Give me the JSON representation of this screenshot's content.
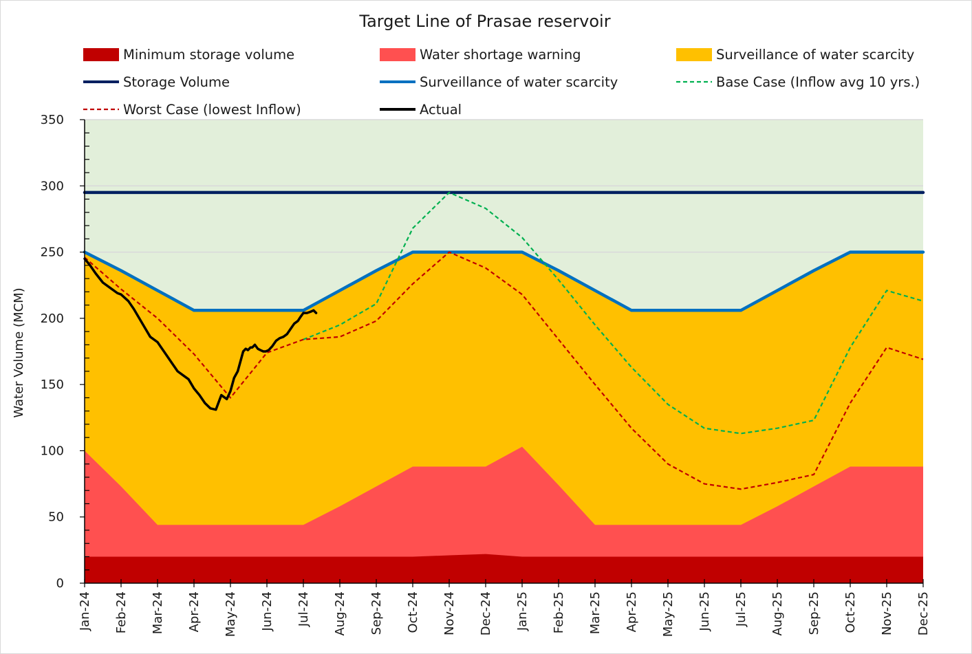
{
  "chart_data": {
    "type": "area",
    "title": "Target Line of Prasae reservoir",
    "xlabel": "",
    "ylabel": "Water Volume (MCM)",
    "ylim": [
      0,
      350
    ],
    "yticks": [
      0,
      50,
      100,
      150,
      200,
      250,
      300,
      350
    ],
    "categories": [
      "Jan-24",
      "Feb-24",
      "Mar-24",
      "Apr-24",
      "May-24",
      "Jun-24",
      "Jul-24",
      "Aug-24",
      "Sep-24",
      "Oct-24",
      "Nov-24",
      "Dec-24",
      "Jan-25",
      "Feb-25",
      "Mar-25",
      "Apr-25",
      "May-25",
      "Jun-25",
      "Jul-25",
      "Aug-25",
      "Sep-25",
      "Oct-25",
      "Nov-25",
      "Dec-25"
    ],
    "background_zone": {
      "color": "#e2efda",
      "from": 0,
      "to": 350
    },
    "grid": "horizontal",
    "legend_position": "top",
    "series": [
      {
        "name": "Surveillance of water scarcity",
        "kind": "area",
        "color": "#ffc000",
        "values": [
          250,
          236,
          221,
          206,
          206,
          206,
          206,
          221,
          236,
          250,
          250,
          250,
          250,
          236,
          221,
          206,
          206,
          206,
          206,
          221,
          236,
          250,
          250,
          250
        ]
      },
      {
        "name": "Water shortage warning",
        "kind": "area",
        "color": "#ff5050",
        "values": [
          100,
          73,
          44,
          44,
          44,
          44,
          44,
          58,
          73,
          88,
          88,
          88,
          103,
          74,
          44,
          44,
          44,
          44,
          44,
          58,
          73,
          88,
          88,
          88
        ]
      },
      {
        "name": "Minimum storage volume",
        "kind": "area",
        "color": "#c00000",
        "values": [
          20,
          20,
          20,
          20,
          20,
          20,
          20,
          20,
          20,
          20,
          21,
          22,
          20,
          20,
          20,
          20,
          20,
          20,
          20,
          20,
          20,
          20,
          20,
          20
        ]
      },
      {
        "name": "Storage Volume",
        "kind": "line",
        "color": "#002060",
        "style": "solid",
        "values": [
          295,
          295,
          295,
          295,
          295,
          295,
          295,
          295,
          295,
          295,
          295,
          295,
          295,
          295,
          295,
          295,
          295,
          295,
          295,
          295,
          295,
          295,
          295,
          295
        ]
      },
      {
        "name": "Surveillance of water scarcity",
        "kind": "line",
        "color": "#0070c0",
        "style": "solid",
        "values": [
          250,
          236,
          221,
          206,
          206,
          206,
          206,
          221,
          236,
          250,
          250,
          250,
          250,
          236,
          221,
          206,
          206,
          206,
          206,
          221,
          236,
          250,
          250,
          250
        ]
      },
      {
        "name": "Base Case (Inflow avg 10 yrs.)",
        "kind": "line",
        "color": "#00b050",
        "style": "dashed",
        "x": [
          6,
          7,
          8,
          9,
          10,
          11,
          12,
          13,
          14,
          15,
          16,
          17,
          18,
          19,
          20,
          21,
          22,
          23
        ],
        "values": [
          184,
          195,
          211,
          268,
          295,
          283,
          261,
          229,
          195,
          163,
          135,
          117,
          113,
          117,
          123,
          178,
          221,
          213
        ]
      },
      {
        "name": "Worst Case (lowest Inflow)",
        "kind": "line",
        "color": "#c00000",
        "style": "dashed",
        "x": [
          0,
          1,
          2,
          3,
          4,
          5,
          6,
          7,
          8,
          9,
          10,
          11,
          12,
          13,
          14,
          15,
          16,
          17,
          18,
          19,
          20,
          21,
          22,
          23
        ],
        "values": [
          246,
          222,
          200,
          173,
          140,
          174,
          184,
          186,
          198,
          226,
          250,
          238,
          218,
          184,
          150,
          117,
          90,
          75,
          71,
          76,
          82,
          136,
          178,
          169
        ]
      },
      {
        "name": "Actual",
        "kind": "line",
        "color": "#000000",
        "style": "solid",
        "x": [
          0,
          0.15,
          0.3,
          0.5,
          0.7,
          0.9,
          1.0,
          1.2,
          1.35,
          1.5,
          1.65,
          1.8,
          2.0,
          2.1,
          2.25,
          2.4,
          2.55,
          2.7,
          2.85,
          3.0,
          3.15,
          3.3,
          3.45,
          3.6,
          3.75,
          3.9,
          4.0,
          4.1,
          4.2,
          4.3,
          4.35,
          4.42,
          4.48,
          4.55,
          4.6,
          4.67,
          4.75,
          4.82,
          4.9,
          4.97,
          5.05,
          5.15,
          5.25,
          5.35,
          5.45,
          5.55,
          5.65,
          5.75,
          5.85,
          5.92,
          6.0,
          6.1,
          6.2,
          6.28,
          6.35
        ],
        "values": [
          245,
          240,
          234,
          227,
          223,
          219,
          218,
          213,
          207,
          200,
          193,
          186,
          182,
          178,
          172,
          166,
          160,
          157,
          154,
          147,
          142,
          136,
          132,
          131,
          142,
          139,
          145,
          155,
          160,
          170,
          175,
          177,
          176,
          178,
          178,
          180,
          177,
          176,
          175,
          175,
          176,
          179,
          183,
          185,
          186,
          188,
          192,
          196,
          198,
          201,
          204,
          204,
          205,
          206,
          204
        ]
      }
    ],
    "legend": [
      {
        "label": "Minimum storage volume",
        "color": "#c00000",
        "kind": "swatch"
      },
      {
        "label": "Water shortage warning",
        "color": "#ff5050",
        "kind": "swatch"
      },
      {
        "label": "Surveillance of water scarcity",
        "color": "#ffc000",
        "kind": "swatch"
      },
      {
        "label": "Storage Volume",
        "color": "#002060",
        "kind": "line"
      },
      {
        "label": "Surveillance of water scarcity",
        "color": "#0070c0",
        "kind": "line"
      },
      {
        "label": "Base Case (Inflow avg 10 yrs.)",
        "color": "#00b050",
        "kind": "dash"
      },
      {
        "label": "Worst Case (lowest Inflow)",
        "color": "#c00000",
        "kind": "dash"
      },
      {
        "label": "Actual",
        "color": "#000000",
        "kind": "line"
      }
    ]
  }
}
